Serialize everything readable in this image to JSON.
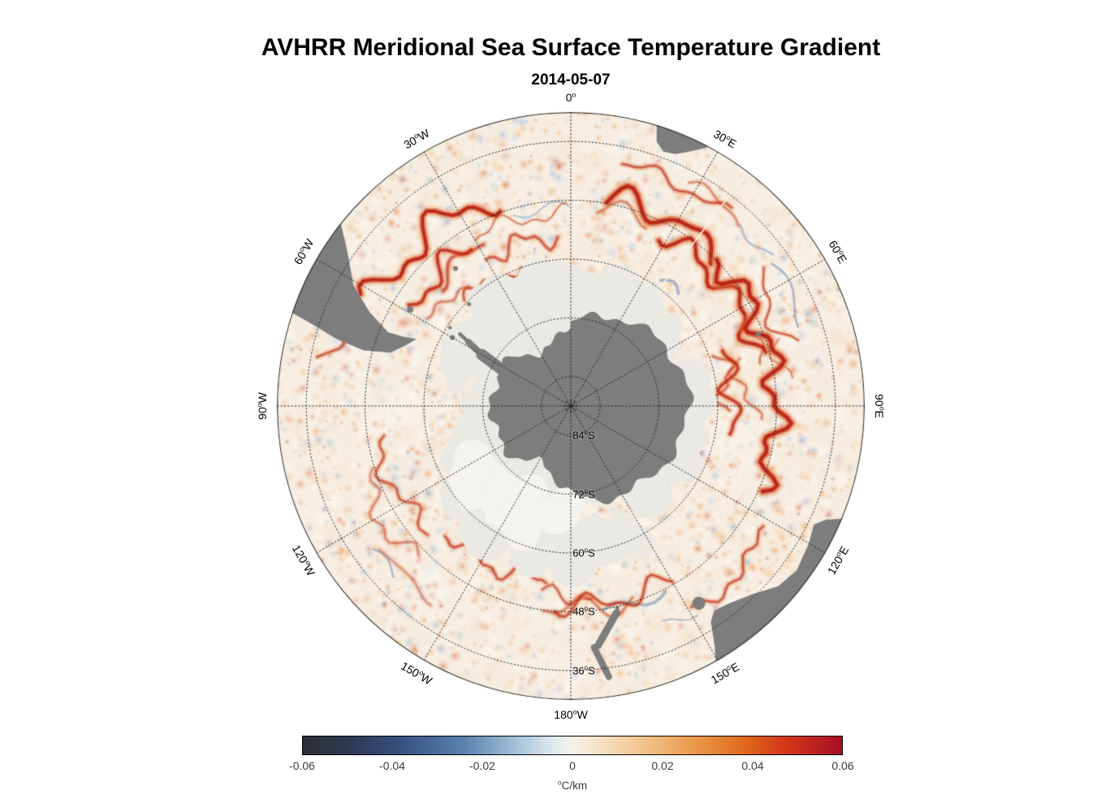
{
  "chart_data": {
    "type": "heatmap",
    "projection": "polar-stereographic-south",
    "title": "AVHRR Meridional Sea Surface Temperature Gradient",
    "subtitle": "2014-05-07",
    "colorbar": {
      "label": "°C/km",
      "min": -0.06,
      "max": 0.06,
      "tick_values": [
        -0.06,
        -0.04,
        -0.02,
        0,
        0.02,
        0.04,
        0.06
      ],
      "tick_labels": [
        "-0.06",
        "-0.04",
        "-0.02",
        "0",
        "0.02",
        "0.04",
        "0.06"
      ],
      "stops": [
        {
          "pos": 0.0,
          "color": "#2e2e33"
        },
        {
          "pos": 0.08,
          "color": "#2d3850"
        },
        {
          "pos": 0.18,
          "color": "#35507e"
        },
        {
          "pos": 0.3,
          "color": "#5b82ae"
        },
        {
          "pos": 0.4,
          "color": "#a8c4d9"
        },
        {
          "pos": 0.47,
          "color": "#e2ebef"
        },
        {
          "pos": 0.5,
          "color": "#f5f2ea"
        },
        {
          "pos": 0.53,
          "color": "#f7e8d2"
        },
        {
          "pos": 0.62,
          "color": "#f3c894"
        },
        {
          "pos": 0.72,
          "color": "#eb9c4e"
        },
        {
          "pos": 0.81,
          "color": "#e06f1e"
        },
        {
          "pos": 0.89,
          "color": "#d43a17"
        },
        {
          "pos": 1.0,
          "color": "#a50f26"
        }
      ]
    },
    "grid": {
      "style": "dotted",
      "longitude_labels": [
        "0°",
        "30°E",
        "60°E",
        "90°E",
        "120°E",
        "150°E",
        "180°W",
        "150°W",
        "120°W",
        "90°W",
        "60°W",
        "30°W"
      ],
      "longitude_angles": [
        0,
        30,
        60,
        90,
        120,
        150,
        180,
        210,
        240,
        270,
        300,
        330
      ],
      "latitude_labels": [
        "84°S",
        "72°S",
        "60°S",
        "48°S",
        "36°S"
      ],
      "latitude_radii": [
        0.1,
        0.3,
        0.5,
        0.7,
        0.9
      ]
    },
    "map": {
      "land_features": [
        "Antarctica",
        "Antarctic Peninsula",
        "South America",
        "Africa",
        "Australia",
        "Tasmania",
        "New Zealand"
      ],
      "land_color": "#7d7d7d",
      "ice_color": "#ebe9e4",
      "ocean_color": "#f6ecdf",
      "antarctica": {
        "base": 0.27,
        "bulges": [
          [
            90,
            40,
            0.13
          ],
          [
            160,
            22,
            0.04
          ],
          [
            30,
            25,
            0.03
          ]
        ],
        "notches": [
          [
            205,
            13,
            0.06
          ],
          [
            335,
            14,
            0.07
          ]
        ]
      },
      "peninsula": [
        [
          298,
          0.27,
          300,
          0.35,
          14
        ],
        [
          300,
          0.35,
          302,
          0.41,
          8
        ],
        [
          302,
          0.41,
          303,
          0.45,
          4.5
        ]
      ],
      "land_polygons": {
        "south_america": [
          [
            311,
            1.06
          ],
          [
            305,
            0.93
          ],
          [
            299,
            0.845
          ],
          [
            295,
            0.755
          ],
          [
            292,
            0.67
          ],
          [
            292.5,
            0.615
          ],
          [
            293.5,
            0.572
          ],
          [
            290,
            0.6
          ],
          [
            286.5,
            0.64
          ],
          [
            285,
            0.73
          ],
          [
            286,
            0.83
          ],
          [
            287.5,
            0.92
          ],
          [
            288.5,
            1.0
          ],
          [
            289,
            1.12
          ],
          [
            300,
            1.35
          ]
        ],
        "africa": [
          [
            15.5,
            1.1
          ],
          [
            17,
            1.0
          ],
          [
            18,
            0.945
          ],
          [
            20,
            0.921
          ],
          [
            22.5,
            0.928
          ],
          [
            25,
            0.955
          ],
          [
            27.5,
            0.99
          ],
          [
            29,
            1.03
          ],
          [
            31,
            1.12
          ],
          [
            23,
            1.35
          ]
        ],
        "australia": [
          [
            110,
            1.2
          ],
          [
            112,
            1.02
          ],
          [
            114,
            0.95
          ],
          [
            116,
            0.92
          ],
          [
            120,
            0.935
          ],
          [
            126,
            0.95
          ],
          [
            131,
            0.935
          ],
          [
            136,
            0.89
          ],
          [
            141,
            0.862
          ],
          [
            145,
            0.85
          ],
          [
            147,
            0.875
          ],
          [
            149,
            0.95
          ],
          [
            151,
            1.02
          ],
          [
            153,
            1.18
          ],
          [
            130,
            1.45
          ]
        ]
      },
      "islands": [
        [
          301,
          0.638,
          4
        ],
        [
          320,
          0.61,
          3
        ],
        [
          315,
          0.49,
          2.5
        ],
        [
          300,
          0.465,
          3
        ],
        [
          303,
          0.49,
          2.2
        ],
        [
          69,
          0.683,
          3
        ],
        [
          147,
          0.8,
          8
        ],
        [
          167,
          0.705,
          2.5
        ]
      ],
      "strokes": [
        [
          167.5,
          0.72,
          173.5,
          0.82,
          9
        ],
        [
          174.5,
          0.825,
          172,
          0.93,
          8
        ]
      ],
      "ice": {
        "core": 0.34,
        "max": 0.44,
        "lobes": [
          [
            150,
            235,
            0.55
          ],
          [
            300,
            356,
            0.48
          ]
        ]
      },
      "fronts": [
        [
          10,
          45,
          0.72,
          0.035,
          7,
          1.0
        ],
        [
          28,
          75,
          0.66,
          0.03,
          6,
          0.95
        ],
        [
          45,
          115,
          0.7,
          0.035,
          7,
          1.0
        ],
        [
          70,
          100,
          0.55,
          0.03,
          5,
          0.8
        ],
        [
          298,
          340,
          0.76,
          0.045,
          6,
          1.0
        ],
        [
          302,
          328,
          0.64,
          0.035,
          5,
          0.85
        ],
        [
          330,
          356,
          0.58,
          0.03,
          4,
          0.6
        ],
        [
          150,
          185,
          0.68,
          0.03,
          4,
          0.65
        ],
        [
          188,
          225,
          0.6,
          0.035,
          4,
          0.6
        ],
        [
          228,
          262,
          0.66,
          0.03,
          4,
          0.55
        ],
        [
          122,
          150,
          0.8,
          0.025,
          4,
          0.6
        ],
        [
          12,
          40,
          0.84,
          0.02,
          4,
          0.6
        ]
      ],
      "swaths": [
        [
          37,
          0.15,
          0.97
        ],
        [
          352,
          0.15,
          0.5
        ]
      ]
    }
  }
}
